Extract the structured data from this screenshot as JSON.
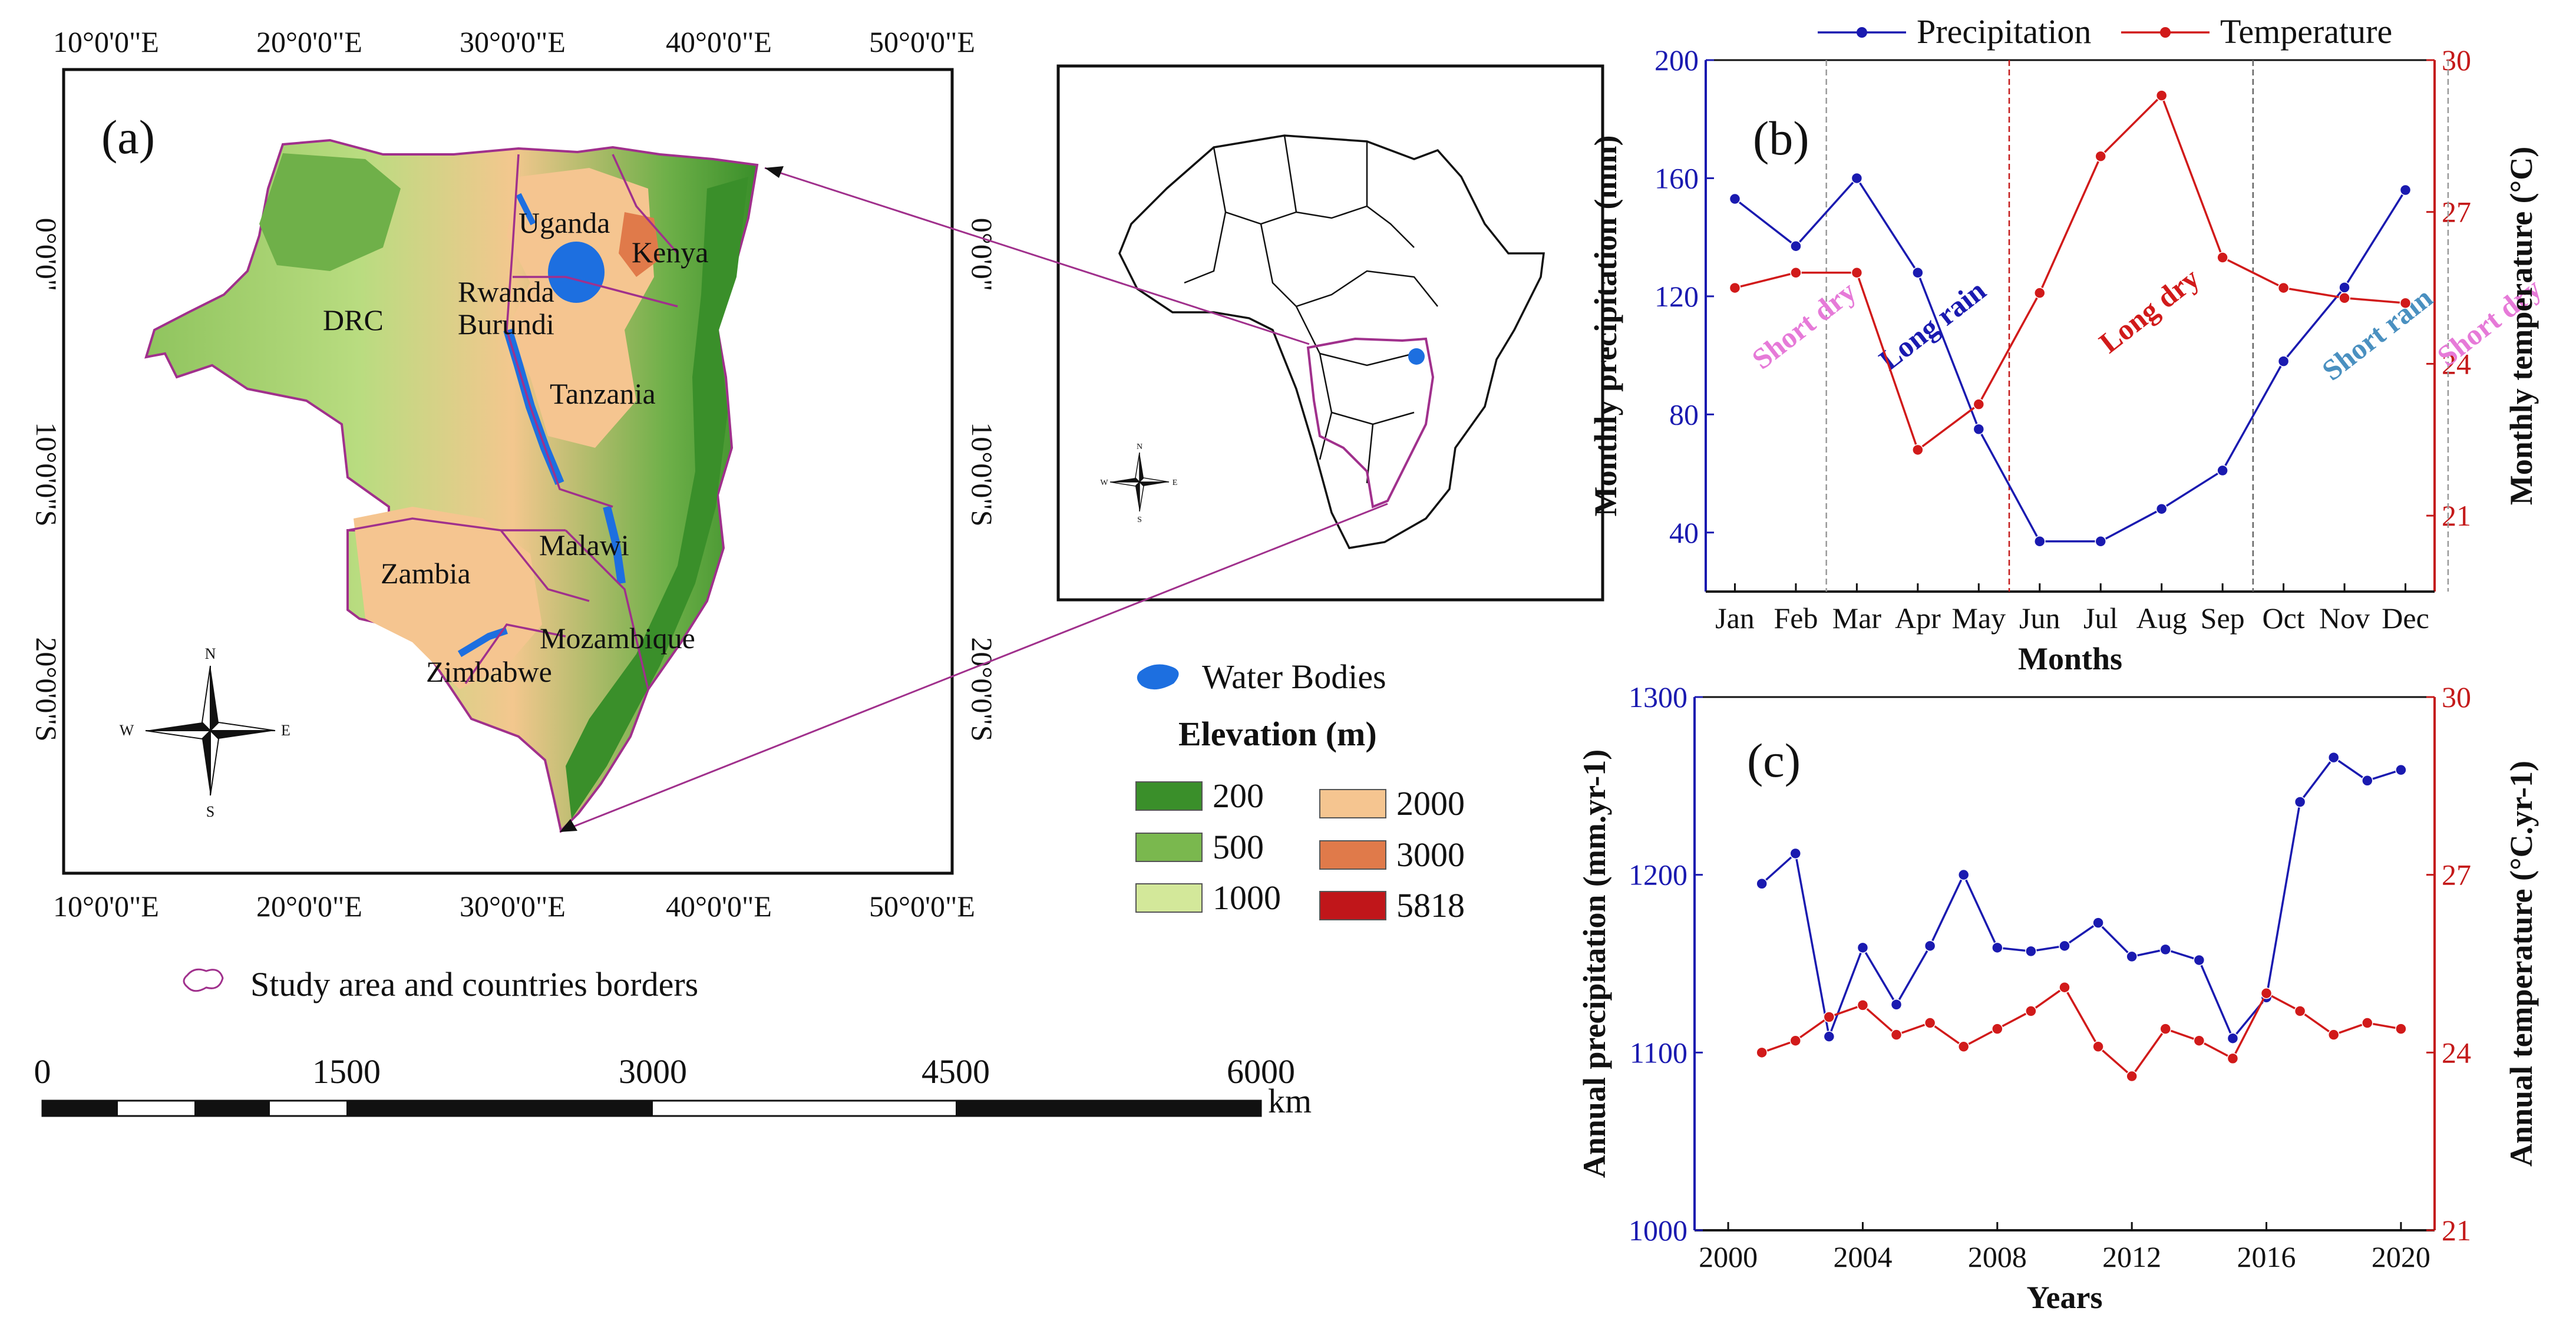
{
  "map_panel": {
    "letter": "(a)",
    "lon_labels": [
      "10°0'0\"E",
      "20°0'0\"E",
      "30°0'0\"E",
      "40°0'0\"E",
      "50°0'0\"E"
    ],
    "lat_labels": [
      "0°0'0\"",
      "10°0'0\"S",
      "20°0'0\"S"
    ],
    "countries": [
      "Uganda",
      "Kenya",
      "Rwanda",
      "Burundi",
      "DRC",
      "Tanzania",
      "Malawi",
      "Zambia",
      "Mozambique",
      "Zimbabwe"
    ],
    "compass": [
      "N",
      "S",
      "E",
      "W"
    ]
  },
  "legend": {
    "water_bodies": "Water Bodies",
    "elevation_title": "Elevation (m)",
    "classes": [
      {
        "label": "200",
        "color": "#3a8f2a"
      },
      {
        "label": "500",
        "color": "#7ab84e"
      },
      {
        "label": "1000",
        "color": "#d3e89a"
      },
      {
        "label": "2000",
        "color": "#f5c590"
      },
      {
        "label": "3000",
        "color": "#e07a4a"
      },
      {
        "label": "5818",
        "color": "#c0161a"
      }
    ],
    "study_area": "Study area and countries borders",
    "water_color": "#1d6fe0",
    "border_color": "#a0308c"
  },
  "scale_bar": {
    "labels": [
      "0",
      "1500",
      "3000",
      "4500",
      "6000"
    ],
    "unit": "km"
  },
  "chart_data": [
    {
      "panel": "(b)",
      "type": "line",
      "categories": [
        "Jan",
        "Feb",
        "Mar",
        "Apr",
        "May",
        "Jun",
        "Jul",
        "Aug",
        "Sep",
        "Oct",
        "Nov",
        "Dec"
      ],
      "series": [
        {
          "name": "Precipitation",
          "axis": "left",
          "color": "#1a1ab0",
          "values": [
            153,
            137,
            160,
            128,
            75,
            37,
            37,
            48,
            61,
            98,
            123,
            156
          ]
        },
        {
          "name": "Temperature",
          "axis": "right",
          "color": "#d11a1a",
          "values": [
            25.5,
            25.8,
            25.8,
            22.3,
            23.2,
            25.4,
            28.1,
            29.3,
            26.1,
            25.5,
            25.3,
            25.2
          ]
        }
      ],
      "xlabel": "Months",
      "ylabel_left": "Monthly precipitation (mm)",
      "ylabel_right": "Monthly temperature (°C)",
      "ylim_left": [
        20,
        200
      ],
      "ylim_right": [
        19.5,
        30
      ],
      "yticks_left": [
        "40",
        "80",
        "120",
        "160",
        "200"
      ],
      "yticks_right": [
        "21",
        "24",
        "27",
        "30"
      ],
      "seasons": [
        {
          "label": "Short dry",
          "color": "#e67ad8"
        },
        {
          "label": "Long rain",
          "color": "#1a1ab0"
        },
        {
          "label": "Long dry",
          "color": "#d11a1a"
        },
        {
          "label": "Short rain",
          "color": "#4a90c0"
        },
        {
          "label": "Short dry",
          "color": "#e67ad8"
        }
      ],
      "legend": {
        "position": "top"
      }
    },
    {
      "panel": "(c)",
      "type": "line",
      "x": [
        2001,
        2002,
        2003,
        2004,
        2005,
        2006,
        2007,
        2008,
        2009,
        2010,
        2011,
        2012,
        2013,
        2014,
        2015,
        2016,
        2017,
        2018,
        2019,
        2020
      ],
      "series": [
        {
          "name": "Precipitation",
          "axis": "left",
          "color": "#1a1ab0",
          "values": [
            1195,
            1212,
            1109,
            1159,
            1127,
            1160,
            1200,
            1159,
            1157,
            1160,
            1173,
            1154,
            1158,
            1152,
            1108,
            1131,
            1241,
            1266,
            1253,
            1259
          ]
        },
        {
          "name": "Temperature",
          "axis": "right",
          "color": "#d11a1a",
          "values": [
            24.0,
            24.2,
            24.6,
            24.8,
            24.3,
            24.5,
            24.1,
            24.4,
            24.7,
            25.1,
            24.1,
            23.6,
            24.4,
            24.2,
            23.9,
            25.0,
            24.7,
            24.3,
            24.5,
            24.4
          ]
        }
      ],
      "xlabel": "Years",
      "ylabel_left": "Annual precipitation (mm.yr-1)",
      "ylabel_right": "Annual temperature (°C.yr-1)",
      "ylim_left": [
        1000,
        1300
      ],
      "ylim_right": [
        21,
        30
      ],
      "xlim": [
        1999,
        2021
      ],
      "xticks": [
        "2000",
        "2004",
        "2008",
        "2012",
        "2016",
        "2020"
      ],
      "yticks_left": [
        "1000",
        "1100",
        "1200",
        "1300"
      ],
      "yticks_right": [
        "21",
        "24",
        "27",
        "30"
      ]
    }
  ]
}
